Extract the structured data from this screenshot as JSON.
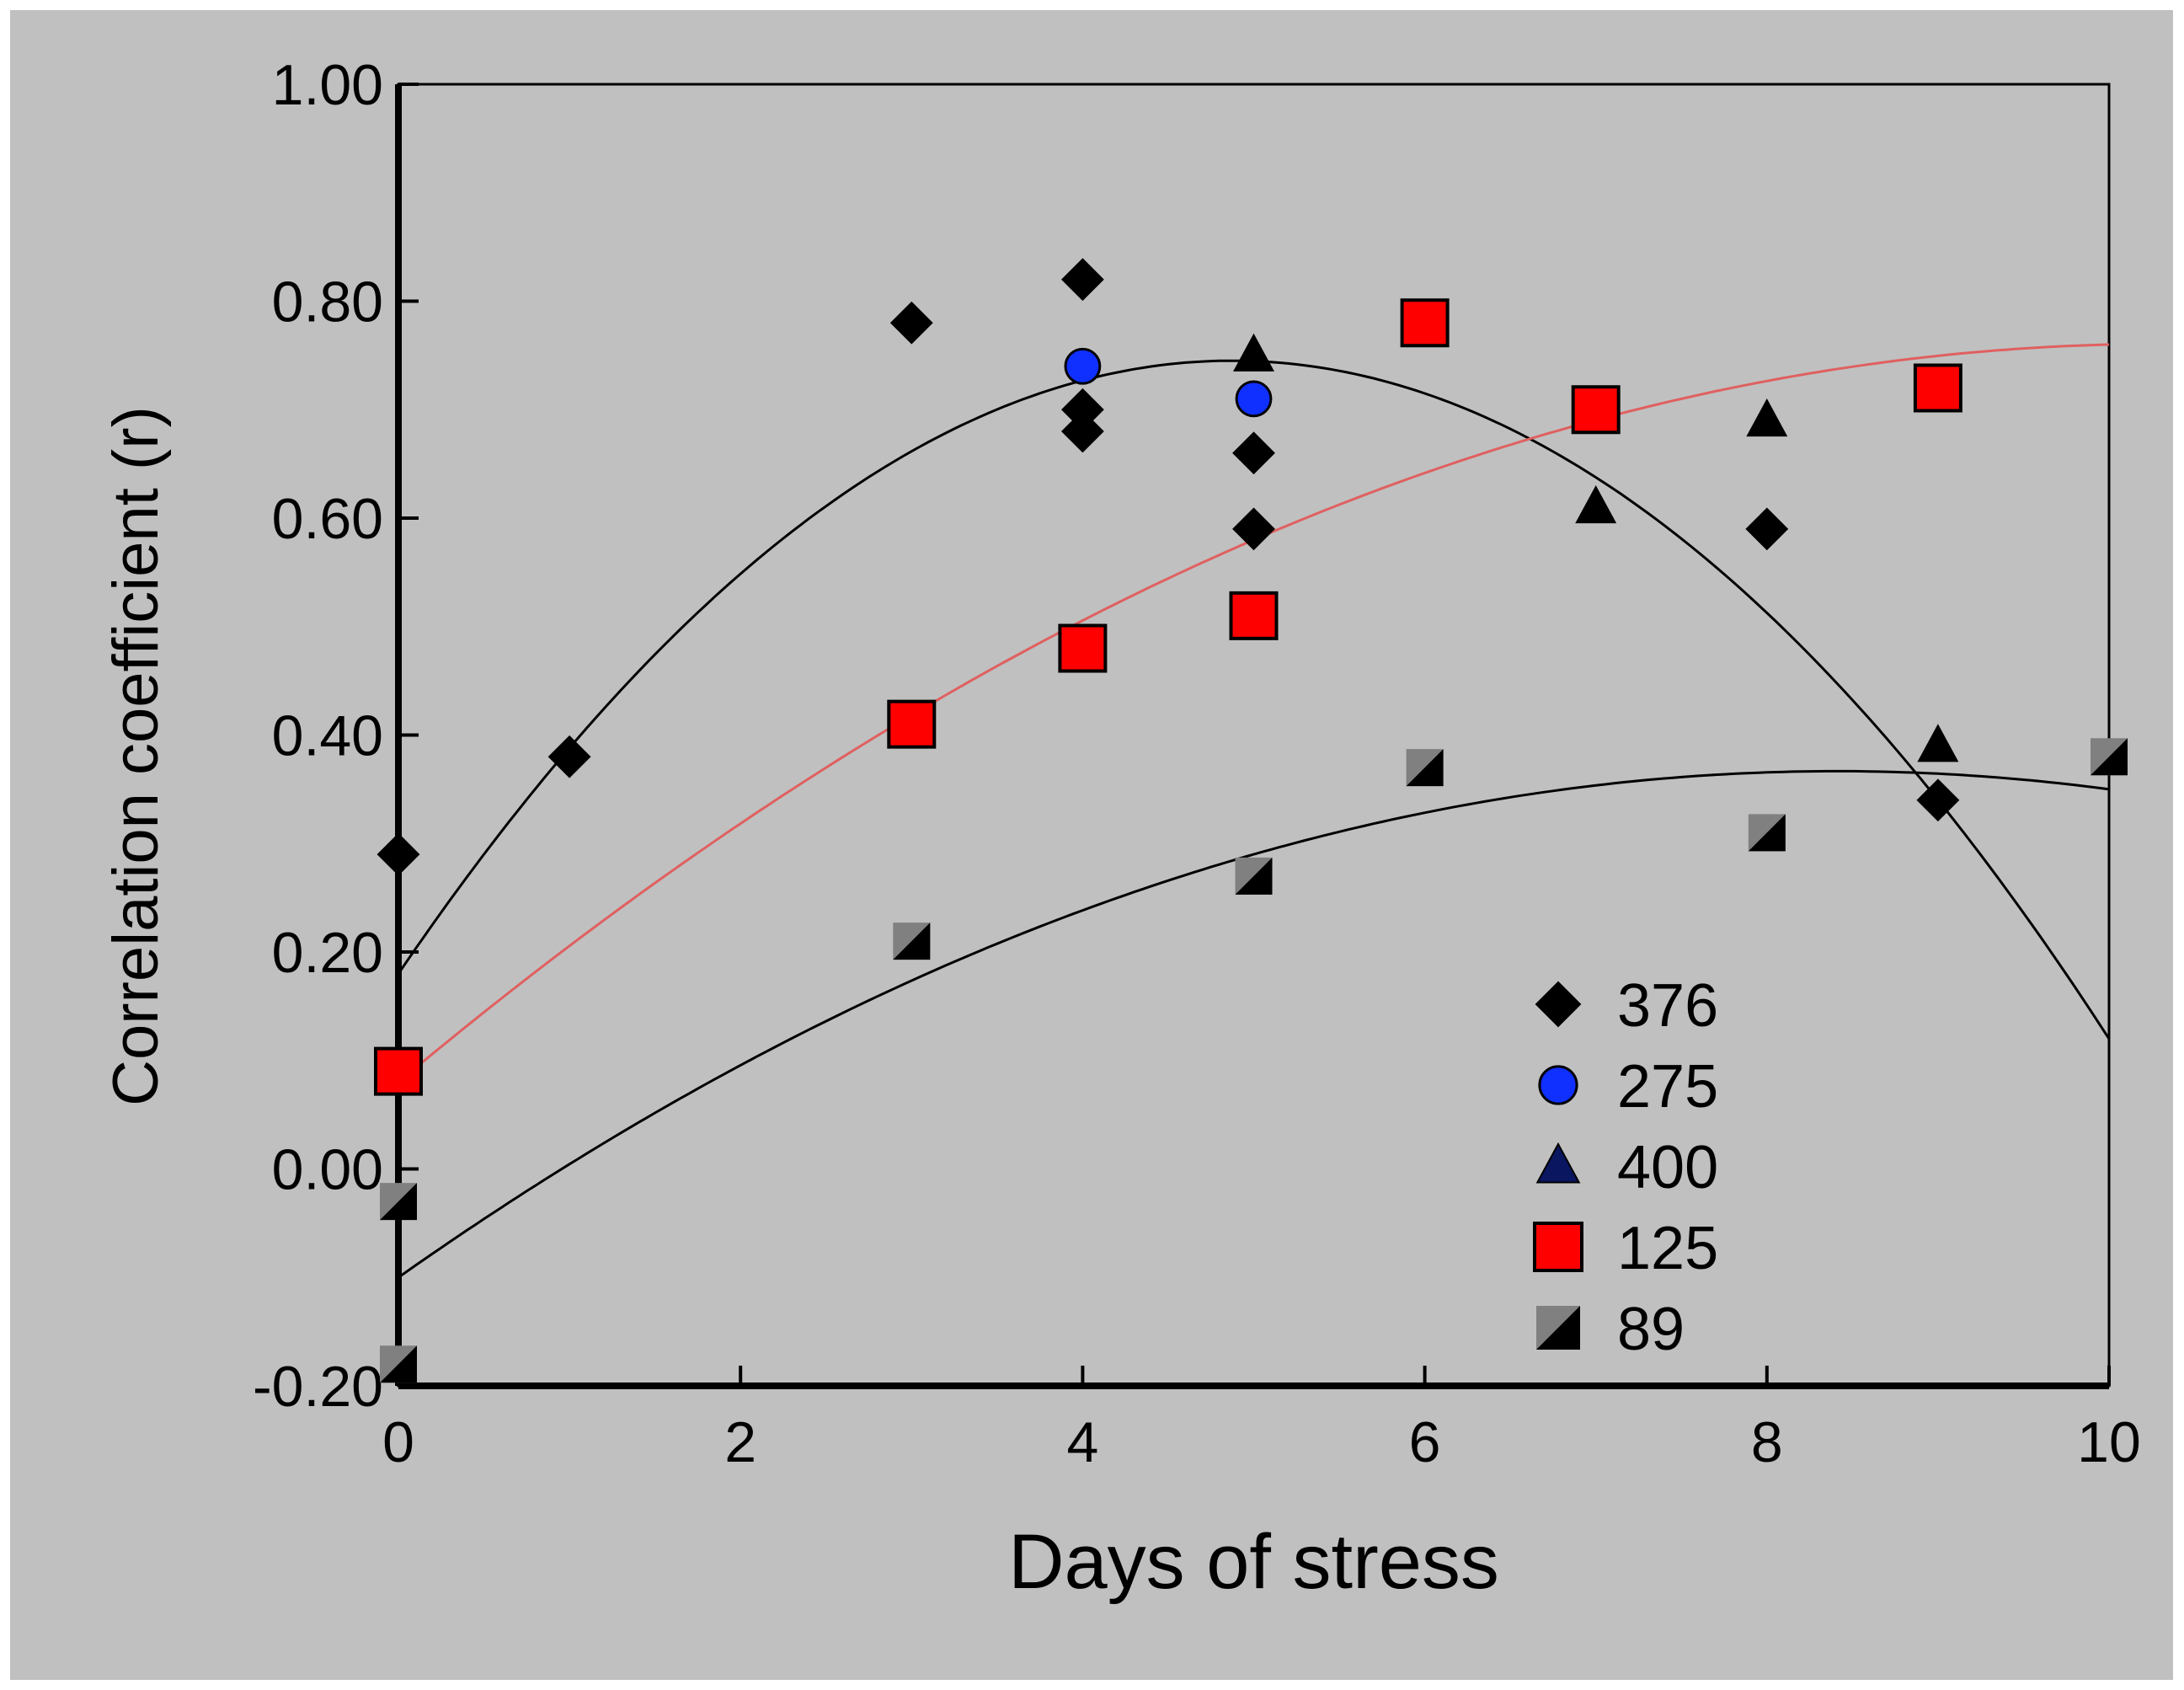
{
  "chart_data": {
    "type": "scatter",
    "title": "",
    "xlabel": "Days of stress",
    "ylabel": "Correlation coefficient (r)",
    "xlim": [
      0,
      10
    ],
    "ylim": [
      -0.2,
      1.0
    ],
    "xticks": [
      0,
      2,
      4,
      6,
      8,
      10
    ],
    "xtick_labels": [
      "0",
      "2",
      "4",
      "6",
      "8",
      "10"
    ],
    "yticks": [
      -0.2,
      0.0,
      0.2,
      0.4,
      0.6,
      0.8,
      1.0
    ],
    "ytick_labels": [
      "-0.20",
      "0.00",
      "0.20",
      "0.40",
      "0.60",
      "0.80",
      "1.00"
    ],
    "grid": false,
    "legend_position": "bottom-right",
    "series": [
      {
        "name": "376",
        "marker": "diamond",
        "color": "#000000",
        "points": [
          [
            0,
            0.29
          ],
          [
            1,
            0.38
          ],
          [
            3,
            0.78
          ],
          [
            4,
            0.82
          ],
          [
            4,
            0.7
          ],
          [
            4,
            0.68
          ],
          [
            5,
            0.66
          ],
          [
            5,
            0.59
          ],
          [
            8,
            0.59
          ],
          [
            9,
            0.34
          ]
        ]
      },
      {
        "name": "275",
        "marker": "circle",
        "color": "#1030ff",
        "points": [
          [
            4,
            0.74
          ],
          [
            5,
            0.71
          ]
        ]
      },
      {
        "name": "400",
        "marker": "triangle",
        "color": "#000000",
        "points": [
          [
            5,
            0.75
          ],
          [
            7,
            0.61
          ],
          [
            8,
            0.69
          ],
          [
            9,
            0.39
          ]
        ]
      },
      {
        "name": "125",
        "marker": "square",
        "color": "#ff0000",
        "points": [
          [
            0,
            0.09
          ],
          [
            3,
            0.41
          ],
          [
            4,
            0.48
          ],
          [
            5,
            0.51
          ],
          [
            6,
            0.78
          ],
          [
            7,
            0.7
          ],
          [
            9,
            0.72
          ]
        ]
      },
      {
        "name": "89",
        "marker": "half-square",
        "color": "#808080",
        "points": [
          [
            0,
            -0.03
          ],
          [
            0,
            -0.18
          ],
          [
            3,
            0.21
          ],
          [
            5,
            0.27
          ],
          [
            6,
            0.37
          ],
          [
            8,
            0.31
          ],
          [
            10,
            0.38
          ]
        ]
      }
    ],
    "fit_curves": [
      {
        "name": "fit-376",
        "color": "#000000",
        "type": "quadratic",
        "points": [
          [
            0,
            0.18
          ],
          [
            4.8,
            0.745
          ],
          [
            10,
            0.12
          ]
        ]
      },
      {
        "name": "fit-125",
        "color": "#e06060",
        "type": "quadratic",
        "points": [
          [
            0,
            0.08
          ],
          [
            5,
            0.58
          ],
          [
            10,
            0.76
          ]
        ]
      },
      {
        "name": "fit-89",
        "color": "#000000",
        "type": "quadratic",
        "points": [
          [
            0,
            -0.1
          ],
          [
            5,
            0.29
          ],
          [
            10,
            0.35
          ]
        ]
      }
    ]
  }
}
